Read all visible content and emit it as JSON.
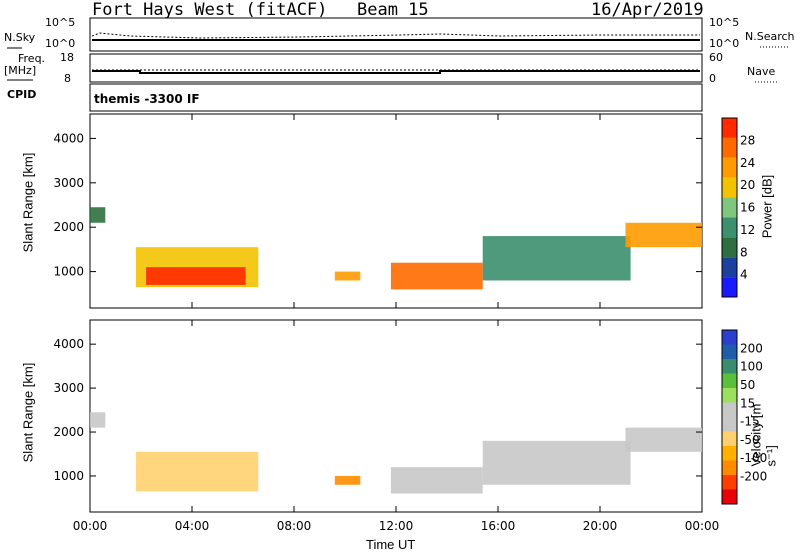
{
  "header": {
    "radar": "Fort Hays West (fitACF)",
    "beam": "Beam 15",
    "date": "16/Apr/2019"
  },
  "top_panels": {
    "nsky_label": "N.Sky",
    "nsky_ticks": [
      "10^5",
      "10^0"
    ],
    "nsearch_label": "N.Search",
    "nsearch_ticks": [
      "10^5",
      "10^0"
    ],
    "freq_label_1": "Freq.",
    "freq_label_2": "[MHz]",
    "freq_ticks": [
      "18",
      "8"
    ],
    "nave_label": "Nave",
    "nave_ticks": [
      "60",
      "0"
    ],
    "cpid_label": "CPID",
    "cpid_text": "themis -3300 IF"
  },
  "colors": {
    "power_scale": [
      "#1a1aff",
      "#1d3f9e",
      "#2f6f3f",
      "#3c8f6f",
      "#7fc67f",
      "#f3c300",
      "#ff9b00",
      "#ff6a00",
      "#ff2a00"
    ],
    "velocity_scale": [
      "#e8000b",
      "#ff3d00",
      "#ff8c00",
      "#ffb000",
      "#ffd070",
      "#c8c8c8",
      "#c8c8c8",
      "#9be05e",
      "#5cbf3a",
      "#3b8c6e",
      "#1f5da8",
      "#2a3fd0"
    ],
    "ground_scatter": "#c8c8c8"
  },
  "chart_data": [
    {
      "type": "heatmap",
      "name": "power",
      "x_ticks": [
        "00:00",
        "04:00",
        "08:00",
        "12:00",
        "16:00",
        "20:00",
        "00:00"
      ],
      "x_range_hours": [
        0,
        24
      ],
      "ylabel": "Slant Range [km]",
      "y_ticks": [
        1000,
        2000,
        3000,
        4000
      ],
      "ylim": [
        180,
        4550
      ],
      "colorbar_label": "Power [dB]",
      "colorbar_ticks": [
        4,
        8,
        12,
        16,
        20,
        24,
        28
      ],
      "regions": [
        {
          "t0": 0.0,
          "t1": 0.6,
          "r0": 2100,
          "r1": 2450,
          "level": 2
        },
        {
          "t0": 1.8,
          "t1": 6.6,
          "r0": 650,
          "r1": 1550,
          "level": 5
        },
        {
          "t0": 2.2,
          "t1": 6.1,
          "r0": 700,
          "r1": 1100,
          "level": 9
        },
        {
          "t0": 9.6,
          "t1": 10.6,
          "r0": 800,
          "r1": 1000,
          "level": 6
        },
        {
          "t0": 11.8,
          "t1": 15.4,
          "r0": 600,
          "r1": 1200,
          "level": 7
        },
        {
          "t0": 15.4,
          "t1": 21.2,
          "r0": 800,
          "r1": 1800,
          "level": 3
        },
        {
          "t0": 21.0,
          "t1": 24.0,
          "r0": 1550,
          "r1": 2100,
          "level": 6
        }
      ]
    },
    {
      "type": "heatmap",
      "name": "velocity",
      "x_ticks": [
        "00:00",
        "04:00",
        "08:00",
        "12:00",
        "16:00",
        "20:00",
        "00:00"
      ],
      "x_range_hours": [
        0,
        24
      ],
      "xlabel": "Time UT",
      "ylabel": "Slant Range [km]",
      "y_ticks": [
        1000,
        2000,
        3000,
        4000
      ],
      "ylim": [
        180,
        4550
      ],
      "colorbar_label": "Velocity [m s⁻¹]",
      "colorbar_ticks": [
        -200,
        -100,
        -50,
        -15,
        15,
        50,
        100,
        200
      ],
      "regions": [
        {
          "t0": 0.0,
          "t1": 0.6,
          "r0": 2100,
          "r1": 2450,
          "velocity": 0
        },
        {
          "t0": 1.8,
          "t1": 6.6,
          "r0": 650,
          "r1": 1550,
          "velocity": -40
        },
        {
          "t0": 9.6,
          "t1": 10.6,
          "r0": 800,
          "r1": 1000,
          "velocity": -60
        },
        {
          "t0": 11.8,
          "t1": 15.4,
          "r0": 600,
          "r1": 1200,
          "velocity": 0
        },
        {
          "t0": 15.4,
          "t1": 21.2,
          "r0": 800,
          "r1": 1800,
          "velocity": 0
        },
        {
          "t0": 21.0,
          "t1": 24.0,
          "r0": 1550,
          "r1": 2100,
          "velocity": 0
        }
      ]
    }
  ]
}
